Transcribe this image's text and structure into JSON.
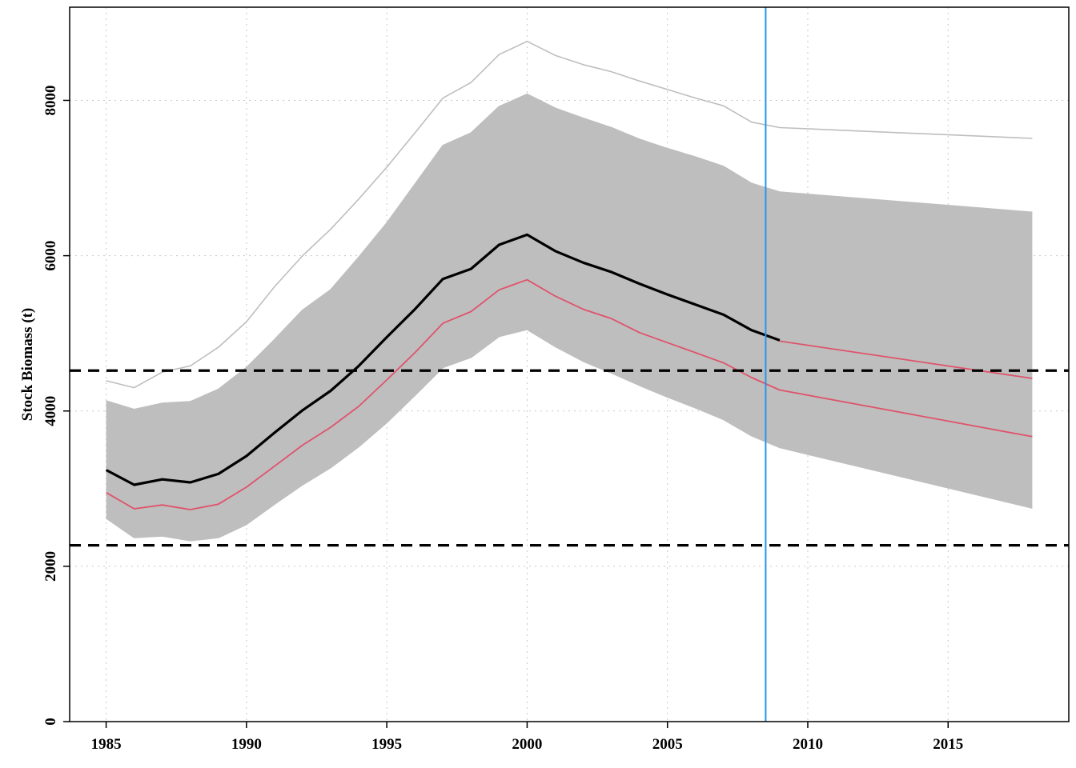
{
  "chart_data": {
    "type": "line",
    "title": "",
    "xlabel": "",
    "ylabel": "Stock Biomass (t)",
    "xlim": [
      1983.7,
      2019.3
    ],
    "ylim": [
      0,
      9200
    ],
    "x_ticks": [
      "1985",
      "1990",
      "1995",
      "2000",
      "2005",
      "2010",
      "2015"
    ],
    "y_ticks": [
      "0",
      "2000",
      "4000",
      "6000",
      "8000"
    ],
    "grid": true,
    "colors": {
      "iterations": "#bebebe",
      "median": "#000000",
      "reference": "#df536b",
      "thresholds": "#000000",
      "current_year_line": "#2297e6",
      "grid": "#c8c8c8"
    },
    "hlines": [
      4520,
      2270
    ],
    "vline_x": 2008.5,
    "series": [
      {
        "role": "iterations-upper-envelope",
        "x": [
          1985,
          1986,
          1987,
          1988,
          1989,
          1990,
          1991,
          1992,
          1993,
          1994,
          1995,
          1996,
          1997,
          1998,
          1999,
          2000,
          2001,
          2002,
          2003,
          2004,
          2005,
          2006,
          2007,
          2008,
          2009,
          2018
        ],
        "values": [
          4130,
          4020,
          4100,
          4120,
          4280,
          4560,
          4920,
          5300,
          5560,
          5980,
          6420,
          6920,
          7420,
          7580,
          7920,
          8080,
          7900,
          7770,
          7650,
          7500,
          7380,
          7270,
          7150,
          6930,
          6820,
          6560
        ]
      },
      {
        "role": "iterations-lower-envelope",
        "x": [
          1985,
          1986,
          1987,
          1988,
          1989,
          1990,
          1991,
          1992,
          1993,
          1994,
          1995,
          1996,
          1997,
          1998,
          1999,
          2000,
          2001,
          2002,
          2003,
          2004,
          2005,
          2006,
          2007,
          2008,
          2009,
          2018
        ],
        "values": [
          2620,
          2370,
          2390,
          2330,
          2370,
          2540,
          2800,
          3050,
          3270,
          3540,
          3850,
          4200,
          4560,
          4690,
          4960,
          5050,
          4830,
          4640,
          4490,
          4330,
          4180,
          4040,
          3890,
          3680,
          3530,
          2750
        ]
      },
      {
        "role": "iterations-outlier-high",
        "x": [
          1985,
          1986,
          1987,
          1988,
          1989,
          1990,
          1991,
          1992,
          1993,
          1994,
          1995,
          1996,
          1997,
          1998,
          1999,
          2000,
          2001,
          2002,
          2003,
          2004,
          2005,
          2006,
          2007,
          2008,
          2009,
          2018
        ],
        "values": [
          4390,
          4300,
          4500,
          4580,
          4820,
          5150,
          5600,
          6000,
          6340,
          6730,
          7140,
          7580,
          8030,
          8230,
          8590,
          8760,
          8580,
          8460,
          8370,
          8250,
          8140,
          8030,
          7930,
          7720,
          7650,
          7510
        ]
      },
      {
        "role": "iterations-sample",
        "x": [
          1985,
          1986,
          1987,
          1988,
          1989,
          1990,
          1991,
          1992,
          1993,
          1994,
          1995,
          1996,
          1997,
          1998,
          1999,
          2000,
          2001,
          2002,
          2003,
          2004,
          2005,
          2006,
          2007,
          2008,
          2009,
          2018
        ],
        "values": [
          4070,
          3950,
          4020,
          4050,
          4180,
          4450,
          4800,
          5180,
          5440,
          5850,
          6280,
          6780,
          7300,
          7470,
          7820,
          7980,
          7800,
          7670,
          7550,
          7400,
          7280,
          7160,
          7040,
          6820,
          6700,
          6300
        ]
      },
      {
        "role": "iterations-sample",
        "x": [
          1985,
          1986,
          1987,
          1988,
          1989,
          1990,
          1991,
          1992,
          1993,
          1994,
          1995,
          1996,
          1997,
          1998,
          1999,
          2000,
          2001,
          2002,
          2003,
          2004,
          2005,
          2006,
          2007,
          2008,
          2009,
          2018
        ],
        "values": [
          2720,
          2460,
          2490,
          2420,
          2480,
          2660,
          2930,
          3190,
          3410,
          3680,
          3990,
          4340,
          4700,
          4820,
          5090,
          5190,
          4960,
          4770,
          4610,
          4450,
          4290,
          4150,
          4000,
          3780,
          3640,
          3000
        ]
      },
      {
        "role": "median",
        "x": [
          1985,
          1986,
          1987,
          1988,
          1989,
          1990,
          1991,
          1992,
          1993,
          1994,
          1995,
          1996,
          1997,
          1998,
          1999,
          2000,
          2001,
          2002,
          2003,
          2004,
          2005,
          2006,
          2007,
          2008,
          2009
        ],
        "values": [
          3240,
          3050,
          3120,
          3080,
          3190,
          3420,
          3720,
          4010,
          4260,
          4580,
          4950,
          5310,
          5700,
          5830,
          6140,
          6270,
          6060,
          5910,
          5790,
          5640,
          5500,
          5370,
          5240,
          5040,
          4910
        ]
      },
      {
        "role": "reference",
        "x": [
          1985,
          1986,
          1987,
          1988,
          1989,
          1990,
          1991,
          1992,
          1993,
          1994,
          1995,
          1996,
          1997,
          1998,
          1999,
          2000,
          2001,
          2002,
          2003,
          2004,
          2005,
          2006,
          2007,
          2008,
          2009,
          2018
        ],
        "values": [
          2950,
          2740,
          2790,
          2730,
          2800,
          3020,
          3290,
          3560,
          3790,
          4060,
          4400,
          4750,
          5130,
          5280,
          5560,
          5690,
          5480,
          5310,
          5190,
          5010,
          4880,
          4750,
          4620,
          4430,
          4270,
          3670
        ]
      },
      {
        "role": "reference",
        "x": [
          2009,
          2018
        ],
        "values": [
          4900,
          4420
        ]
      }
    ]
  }
}
